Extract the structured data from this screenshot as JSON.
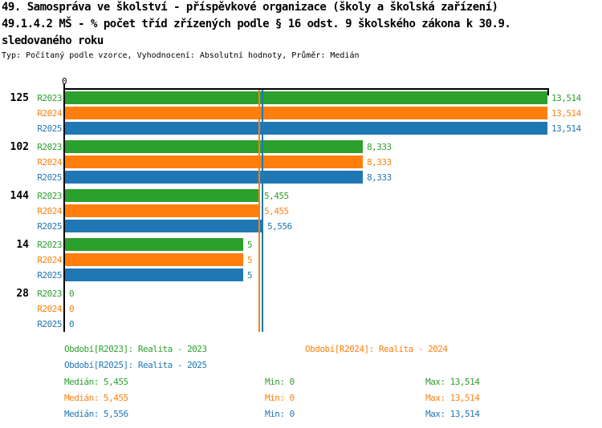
{
  "title": {
    "line1": "49. Samospráva ve školství - příspěvkové organizace (školy a školská zařízení)",
    "line2": "49.1.4.2 MŠ - % počet tříd zřízených podle § 16 odst. 9 školského zákona k 30.9.",
    "line3": "sledovaného roku",
    "subtitle": "Typ: Počítaný podle vzorce, Vyhodnocení: Absolutní hodnoty, Průměr: Medián"
  },
  "colors": {
    "r2023": "#2ca02c",
    "r2024": "#ff7f0e",
    "r2025": "#1f77b4",
    "axis": "#000000"
  },
  "axis": {
    "zero_label": "0"
  },
  "chart_data": {
    "type": "bar",
    "orientation": "horizontal",
    "title": "49.1.4.2 MŠ - % počet tříd zřízených podle § 16 odst. 9 školského zákona k 30.9. sledovaného roku",
    "categories": [
      "125",
      "102",
      "144",
      "14",
      "28"
    ],
    "series": [
      {
        "name": "R2023",
        "color": "#2ca02c",
        "values": [
          13.514,
          8.333,
          5.455,
          5,
          0
        ],
        "labels": [
          "13,514",
          "8,333",
          "5,455",
          "5",
          "0"
        ],
        "median": 5.455,
        "min": 0,
        "max": 13.514
      },
      {
        "name": "R2024",
        "color": "#ff7f0e",
        "values": [
          13.514,
          8.333,
          5.455,
          5,
          0
        ],
        "labels": [
          "13,514",
          "8,333",
          "5,455",
          "5",
          "0"
        ],
        "median": 5.455,
        "min": 0,
        "max": 13.514
      },
      {
        "name": "R2025",
        "color": "#1f77b4",
        "values": [
          13.514,
          8.333,
          5.556,
          5,
          0
        ],
        "labels": [
          "13,514",
          "8,333",
          "5,556",
          "5",
          "0"
        ],
        "median": 5.556,
        "min": 0,
        "max": 13.514
      }
    ],
    "xlim": [
      0,
      13.514
    ],
    "grid": false,
    "legend_position": "bottom",
    "median_lines": [
      {
        "series": "R2023",
        "value": 5.455,
        "color": "#2ca02c"
      },
      {
        "series": "R2024",
        "value": 5.455,
        "color": "#ff7f0e"
      },
      {
        "series": "R2025",
        "value": 5.556,
        "color": "#1f77b4"
      }
    ]
  },
  "legend": {
    "r2023": "Období[R2023]: Realita - 2023",
    "r2024": "Období[R2024]: Realita - 2024",
    "r2025": "Období[R2025]: Realita - 2025"
  },
  "stats": [
    {
      "series": "R2023",
      "median": "Medián: 5,455",
      "min": "Min: 0",
      "max": "Max: 13,514"
    },
    {
      "series": "R2024",
      "median": "Medián: 5,455",
      "min": "Min: 0",
      "max": "Max: 13,514"
    },
    {
      "series": "R2025",
      "median": "Medián: 5,556",
      "min": "Min: 0",
      "max": "Max: 13,514"
    }
  ]
}
